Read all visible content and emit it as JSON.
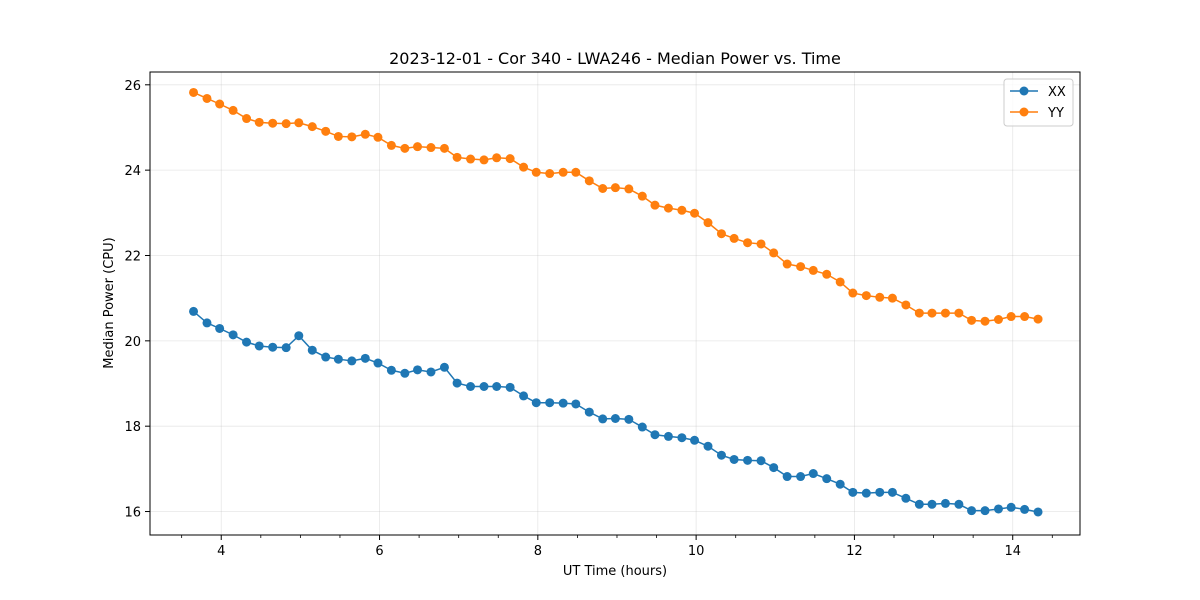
{
  "chart_data": {
    "type": "line",
    "title": "2023-12-01 - Cor 340 - LWA246 - Median Power vs. Time",
    "xlabel": "UT Time (hours)",
    "ylabel": "Median Power (CPU)",
    "xlim": [
      3.1,
      14.85
    ],
    "ylim": [
      15.45,
      26.3
    ],
    "xticks": [
      4,
      6,
      8,
      10,
      12,
      14
    ],
    "xtick_labels": [
      "4",
      "6",
      "8",
      "10",
      "12",
      "14"
    ],
    "yticks": [
      16,
      18,
      20,
      22,
      24,
      26
    ],
    "ytick_labels": [
      "16",
      "18",
      "20",
      "22",
      "24",
      "26"
    ],
    "grid": true,
    "legend_position": "top-right",
    "x": [
      3.65,
      3.82,
      3.98,
      4.15,
      4.32,
      4.48,
      4.65,
      4.82,
      4.98,
      5.15,
      5.32,
      5.48,
      5.65,
      5.82,
      5.98,
      6.15,
      6.32,
      6.48,
      6.65,
      6.82,
      6.98,
      7.15,
      7.32,
      7.48,
      7.65,
      7.82,
      7.98,
      8.15,
      8.32,
      8.48,
      8.65,
      8.82,
      8.98,
      9.15,
      9.32,
      9.48,
      9.65,
      9.82,
      9.98,
      10.15,
      10.32,
      10.48,
      10.65,
      10.82,
      10.98,
      11.15,
      11.32,
      11.48,
      11.65,
      11.82,
      11.98,
      12.15,
      12.32,
      12.48,
      12.65,
      12.82,
      12.98,
      13.15,
      13.32,
      13.48,
      13.65,
      13.82,
      13.98,
      14.15,
      14.32
    ],
    "series": [
      {
        "name": "XX",
        "color": "#1f77b4",
        "values": [
          20.69,
          20.42,
          20.29,
          20.14,
          19.97,
          19.88,
          19.85,
          19.84,
          20.12,
          19.78,
          19.62,
          19.57,
          19.53,
          19.59,
          19.48,
          19.31,
          19.24,
          19.32,
          19.27,
          19.38,
          19.01,
          18.93,
          18.93,
          18.93,
          18.91,
          18.71,
          18.55,
          18.55,
          18.54,
          18.52,
          18.33,
          18.17,
          18.18,
          18.16,
          17.98,
          17.8,
          17.76,
          17.73,
          17.67,
          17.53,
          17.32,
          17.22,
          17.2,
          17.19,
          17.03,
          16.82,
          16.82,
          16.89,
          16.77,
          16.64,
          16.45,
          16.43,
          16.45,
          16.45,
          16.31,
          16.17,
          16.17,
          16.19,
          16.17,
          16.02,
          16.02,
          16.06,
          16.1,
          16.05,
          15.99
        ]
      },
      {
        "name": "YY",
        "color": "#ff7f0e",
        "values": [
          25.82,
          25.68,
          25.55,
          25.4,
          25.21,
          25.12,
          25.1,
          25.09,
          25.11,
          25.02,
          24.91,
          24.79,
          24.78,
          24.84,
          24.77,
          24.58,
          24.51,
          24.55,
          24.53,
          24.51,
          24.3,
          24.26,
          24.24,
          24.29,
          24.27,
          24.07,
          23.95,
          23.92,
          23.95,
          23.95,
          23.75,
          23.57,
          23.59,
          23.56,
          23.39,
          23.18,
          23.11,
          23.06,
          22.99,
          22.77,
          22.51,
          22.4,
          22.3,
          22.27,
          22.06,
          21.8,
          21.74,
          21.65,
          21.56,
          21.38,
          21.12,
          21.06,
          21.02,
          21.0,
          20.84,
          20.65,
          20.65,
          20.65,
          20.65,
          20.48,
          20.46,
          20.5,
          20.57,
          20.57,
          20.51
        ]
      }
    ]
  }
}
